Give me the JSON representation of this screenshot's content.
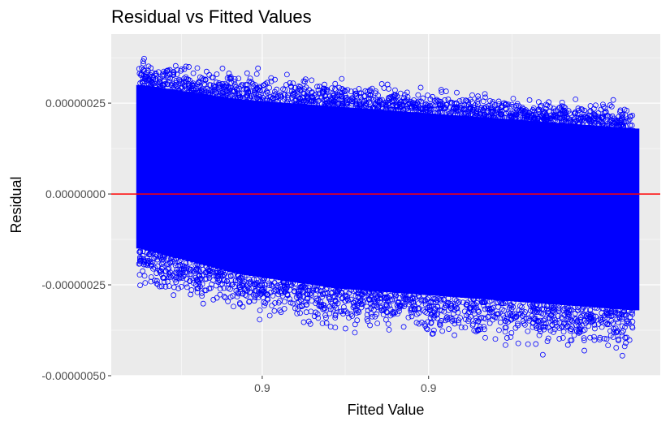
{
  "chart_data": {
    "type": "scatter",
    "title": "Residual vs Fitted Values",
    "xlabel": "Fitted Value",
    "ylabel": "Residual",
    "y_tick_labels": [
      "-0.00000050",
      "-0.00000025",
      "0.00000000",
      "0.00000025"
    ],
    "y_ticks": [
      -5e-07,
      -2.5e-07,
      0.0,
      2.5e-07
    ],
    "x_tick_labels": [
      "0.9",
      "0.9"
    ],
    "ylim": [
      -5e-07,
      4.4e-07
    ],
    "reference_line": {
      "y": 0.0,
      "color": "#ff0000"
    },
    "point_color": "#0000ff",
    "panel_background": "#ebebeb",
    "grid": true,
    "marker": "open-circle",
    "series_summary": {
      "x_range_fraction": [
        0.05,
        0.95
      ],
      "upper_envelope": [
        4e-07,
        3.8e-07,
        3.4e-07,
        3.1e-07,
        2.9e-07,
        2.8e-07
      ],
      "lower_envelope": [
        -3e-07,
        -3.8e-07,
        -4.2e-07,
        -4.5e-07,
        -4.7e-07,
        -4.8e-07
      ],
      "core_upper": [
        3e-07,
        2.6e-07,
        2.4e-07,
        2.2e-07,
        2e-07,
        1.8e-07
      ],
      "core_lower": [
        -1.5e-07,
        -2.2e-07,
        -2.6e-07,
        -2.8e-07,
        -3e-07,
        -3.2e-07
      ]
    }
  }
}
